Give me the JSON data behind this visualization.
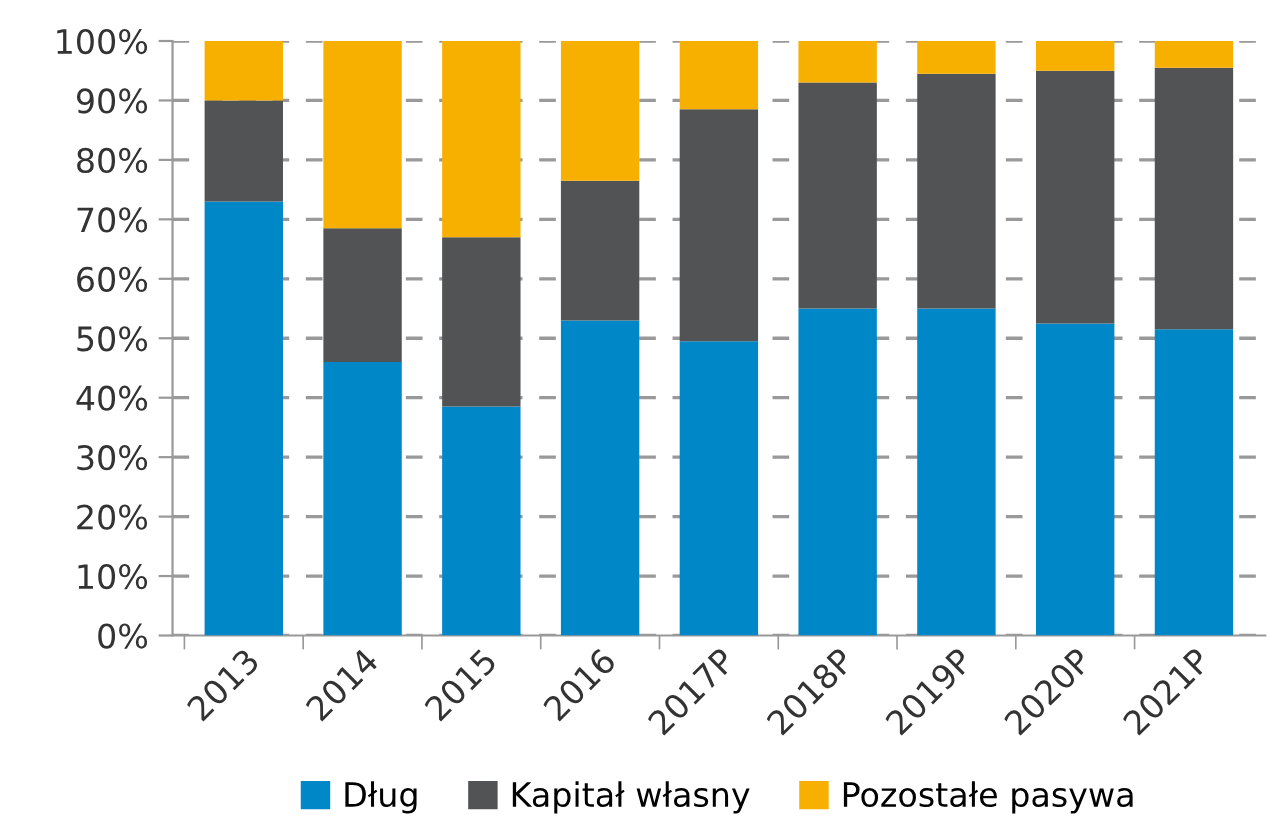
{
  "chart_data": {
    "type": "bar",
    "stacked": true,
    "categories": [
      "2013",
      "2014",
      "2015",
      "2016",
      "2017P",
      "2018P",
      "2019P",
      "2020P",
      "2021P"
    ],
    "series": [
      {
        "name": "Dług",
        "color": "#0087c8",
        "values": [
          73,
          46,
          38.5,
          53,
          49.5,
          55,
          55,
          52.5,
          51.5
        ]
      },
      {
        "name": "Kapitał własny",
        "color": "#525355",
        "values": [
          17,
          22.5,
          28.5,
          23.5,
          39,
          38,
          39.5,
          42.5,
          44
        ]
      },
      {
        "name": "Pozostałe pasywa",
        "color": "#f8b000",
        "values": [
          10,
          31.5,
          33,
          23.5,
          11.5,
          7,
          5.5,
          5,
          4.5
        ]
      }
    ],
    "ylim": [
      0,
      100
    ],
    "yticks": [
      {
        "value": 0,
        "label": "0%"
      },
      {
        "value": 10,
        "label": "10%"
      },
      {
        "value": 20,
        "label": "20%"
      },
      {
        "value": 30,
        "label": "30%"
      },
      {
        "value": 40,
        "label": "40%"
      },
      {
        "value": 50,
        "label": "50%"
      },
      {
        "value": 60,
        "label": "60%"
      },
      {
        "value": 70,
        "label": "70%"
      },
      {
        "value": 80,
        "label": "80%"
      },
      {
        "value": 90,
        "label": "90%"
      },
      {
        "value": 100,
        "label": "100%"
      }
    ],
    "grid": "y",
    "legend": "bottom"
  }
}
